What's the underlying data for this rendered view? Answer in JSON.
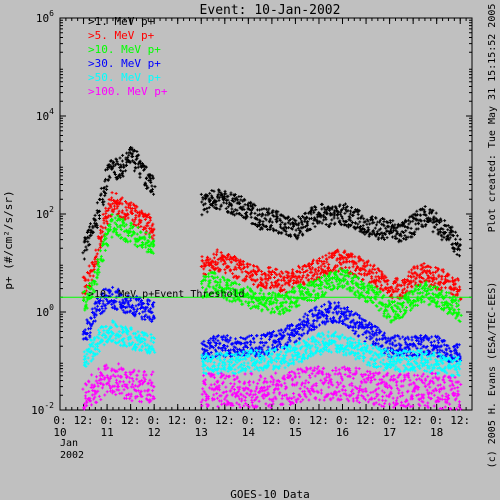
{
  "chart_data": {
    "type": "scatter",
    "title": "Event: 10-Jan-2002",
    "ylabel": "p+ (#/cm²/s/sr)",
    "xlabel": "GOES-10 Data",
    "y_scale": "log",
    "ylim": [
      0.01,
      1000000
    ],
    "y_ticks": [
      {
        "value": 0.01,
        "base": "10",
        "exp": "-2"
      },
      {
        "value": 1,
        "base": "10",
        "exp": "0"
      },
      {
        "value": 100,
        "base": "10",
        "exp": "2"
      },
      {
        "value": 10000,
        "base": "10",
        "exp": "4"
      },
      {
        "value": 1000000,
        "base": "10",
        "exp": "6"
      }
    ],
    "xlim": [
      "2002-01-10 00:00",
      "2002-01-18 18:00"
    ],
    "x_ticks": [
      {
        "t": "2002-01-10 00:00",
        "label": "0:"
      },
      {
        "t": "2002-01-10 12:00",
        "label": "12:"
      },
      {
        "t": "2002-01-11 00:00",
        "label": "0:"
      },
      {
        "t": "2002-01-11 12:00",
        "label": "12:"
      },
      {
        "t": "2002-01-12 00:00",
        "label": "0:"
      },
      {
        "t": "2002-01-12 12:00",
        "label": "12:"
      },
      {
        "t": "2002-01-13 00:00",
        "label": "0:"
      },
      {
        "t": "2002-01-13 12:00",
        "label": "12:"
      },
      {
        "t": "2002-01-14 00:00",
        "label": "0:"
      },
      {
        "t": "2002-01-14 12:00",
        "label": "12:"
      },
      {
        "t": "2002-01-15 00:00",
        "label": "0:"
      },
      {
        "t": "2002-01-15 12:00",
        "label": "12:"
      },
      {
        "t": "2002-01-16 00:00",
        "label": "0:"
      },
      {
        "t": "2002-01-16 12:00",
        "label": "12:"
      },
      {
        "t": "2002-01-17 00:00",
        "label": "0:"
      },
      {
        "t": "2002-01-17 12:00",
        "label": "12:"
      },
      {
        "t": "2002-01-18 00:00",
        "label": "0:"
      },
      {
        "t": "2002-01-18 12:00",
        "label": "12:"
      }
    ],
    "day_labels": [
      {
        "t": "2002-01-10 00:00",
        "label": "10"
      },
      {
        "t": "2002-01-11 00:00",
        "label": "11"
      },
      {
        "t": "2002-01-12 00:00",
        "label": "12"
      },
      {
        "t": "2002-01-13 00:00",
        "label": "13"
      },
      {
        "t": "2002-01-14 00:00",
        "label": "14"
      },
      {
        "t": "2002-01-15 00:00",
        "label": "15"
      },
      {
        "t": "2002-01-16 00:00",
        "label": "16"
      },
      {
        "t": "2002-01-17 00:00",
        "label": "17"
      },
      {
        "t": "2002-01-18 00:00",
        "label": "18"
      }
    ],
    "month_label": "Jan",
    "year_label": "2002",
    "threshold": {
      "value": 2.0,
      "label": ">10. MeV p+Event Threshold",
      "color": "#00ff00"
    },
    "right_annotation_top": "Plot created: Tue May 31 15:15:52 2005",
    "right_annotation_bottom": "(c) 2005 H. Evans (ESA/TEC-EES)",
    "data_gap": [
      "2002-01-12 00:00",
      "2002-01-12 23:00"
    ],
    "series": [
      {
        "name": ">1. MeV p+",
        "color": "#000000",
        "points": [
          [
            "2002-01-10 12:00",
            20
          ],
          [
            "2002-01-10 15:00",
            35
          ],
          [
            "2002-01-10 18:00",
            60
          ],
          [
            "2002-01-10 21:00",
            200
          ],
          [
            "2002-01-11 00:00",
            600
          ],
          [
            "2002-01-11 03:00",
            900
          ],
          [
            "2002-01-11 06:00",
            800
          ],
          [
            "2002-01-11 09:00",
            1000
          ],
          [
            "2002-01-11 12:00",
            1500
          ],
          [
            "2002-01-11 15:00",
            1200
          ],
          [
            "2002-01-11 18:00",
            700
          ],
          [
            "2002-01-11 21:00",
            500
          ],
          [
            "2002-01-12 00:00",
            400
          ],
          [
            "2002-01-13 00:00",
            150
          ],
          [
            "2002-01-13 06:00",
            200
          ],
          [
            "2002-01-13 12:00",
            180
          ],
          [
            "2002-01-13 18:00",
            150
          ],
          [
            "2002-01-14 00:00",
            120
          ],
          [
            "2002-01-14 06:00",
            80
          ],
          [
            "2002-01-14 12:00",
            80
          ],
          [
            "2002-01-14 18:00",
            60
          ],
          [
            "2002-01-15 00:00",
            50
          ],
          [
            "2002-01-15 06:00",
            70
          ],
          [
            "2002-01-15 12:00",
            100
          ],
          [
            "2002-01-15 18:00",
            90
          ],
          [
            "2002-01-16 00:00",
            100
          ],
          [
            "2002-01-16 06:00",
            80
          ],
          [
            "2002-01-16 12:00",
            60
          ],
          [
            "2002-01-16 18:00",
            50
          ],
          [
            "2002-01-17 00:00",
            50
          ],
          [
            "2002-01-17 06:00",
            40
          ],
          [
            "2002-01-17 12:00",
            60
          ],
          [
            "2002-01-17 18:00",
            100
          ],
          [
            "2002-01-18 00:00",
            60
          ],
          [
            "2002-01-18 06:00",
            40
          ],
          [
            "2002-01-18 12:00",
            20
          ]
        ]
      },
      {
        "name": ">5. MeV p+",
        "color": "#ff0000",
        "points": [
          [
            "2002-01-10 12:00",
            3
          ],
          [
            "2002-01-10 15:00",
            5
          ],
          [
            "2002-01-10 18:00",
            10
          ],
          [
            "2002-01-10 21:00",
            40
          ],
          [
            "2002-01-11 00:00",
            100
          ],
          [
            "2002-01-11 03:00",
            180
          ],
          [
            "2002-01-11 06:00",
            150
          ],
          [
            "2002-01-11 09:00",
            120
          ],
          [
            "2002-01-11 12:00",
            110
          ],
          [
            "2002-01-11 15:00",
            90
          ],
          [
            "2002-01-11 18:00",
            70
          ],
          [
            "2002-01-11 21:00",
            60
          ],
          [
            "2002-01-12 00:00",
            50
          ],
          [
            "2002-01-13 00:00",
            8
          ],
          [
            "2002-01-13 06:00",
            12
          ],
          [
            "2002-01-13 12:00",
            10
          ],
          [
            "2002-01-13 18:00",
            8
          ],
          [
            "2002-01-14 00:00",
            6
          ],
          [
            "2002-01-14 06:00",
            5
          ],
          [
            "2002-01-14 12:00",
            5
          ],
          [
            "2002-01-14 18:00",
            4
          ],
          [
            "2002-01-15 00:00",
            5
          ],
          [
            "2002-01-15 06:00",
            6
          ],
          [
            "2002-01-15 12:00",
            8
          ],
          [
            "2002-01-15 18:00",
            10
          ],
          [
            "2002-01-16 00:00",
            12
          ],
          [
            "2002-01-16 06:00",
            9
          ],
          [
            "2002-01-16 12:00",
            7
          ],
          [
            "2002-01-16 18:00",
            5
          ],
          [
            "2002-01-17 00:00",
            3
          ],
          [
            "2002-01-17 06:00",
            3
          ],
          [
            "2002-01-17 12:00",
            5
          ],
          [
            "2002-01-17 18:00",
            6
          ],
          [
            "2002-01-18 00:00",
            5
          ],
          [
            "2002-01-18 06:00",
            4
          ],
          [
            "2002-01-18 12:00",
            3
          ]
        ]
      },
      {
        "name": ">10. MeV p+",
        "color": "#00ff00",
        "points": [
          [
            "2002-01-10 12:00",
            1.5
          ],
          [
            "2002-01-10 15:00",
            2.5
          ],
          [
            "2002-01-10 18:00",
            5
          ],
          [
            "2002-01-10 21:00",
            15
          ],
          [
            "2002-01-11 00:00",
            35
          ],
          [
            "2002-01-11 03:00",
            60
          ],
          [
            "2002-01-11 06:00",
            55
          ],
          [
            "2002-01-11 09:00",
            45
          ],
          [
            "2002-01-11 12:00",
            40
          ],
          [
            "2002-01-11 15:00",
            35
          ],
          [
            "2002-01-11 18:00",
            30
          ],
          [
            "2002-01-11 21:00",
            25
          ],
          [
            "2002-01-12 00:00",
            20
          ],
          [
            "2002-01-13 00:00",
            3
          ],
          [
            "2002-01-13 06:00",
            4
          ],
          [
            "2002-01-13 12:00",
            3
          ],
          [
            "2002-01-13 18:00",
            2.5
          ],
          [
            "2002-01-14 00:00",
            2
          ],
          [
            "2002-01-14 06:00",
            1.8
          ],
          [
            "2002-01-14 12:00",
            1.5
          ],
          [
            "2002-01-14 18:00",
            1.5
          ],
          [
            "2002-01-15 00:00",
            2
          ],
          [
            "2002-01-15 06:00",
            2.5
          ],
          [
            "2002-01-15 12:00",
            3
          ],
          [
            "2002-01-15 18:00",
            4
          ],
          [
            "2002-01-16 00:00",
            5
          ],
          [
            "2002-01-16 06:00",
            3.5
          ],
          [
            "2002-01-16 12:00",
            2.5
          ],
          [
            "2002-01-16 18:00",
            2
          ],
          [
            "2002-01-17 00:00",
            1
          ],
          [
            "2002-01-17 06:00",
            1.2
          ],
          [
            "2002-01-17 12:00",
            2
          ],
          [
            "2002-01-17 18:00",
            2.5
          ],
          [
            "2002-01-18 00:00",
            2
          ],
          [
            "2002-01-18 06:00",
            1.5
          ],
          [
            "2002-01-18 12:00",
            1
          ]
        ]
      },
      {
        "name": ">30. MeV p+",
        "color": "#0000ff",
        "points": [
          [
            "2002-01-10 12:00",
            0.3
          ],
          [
            "2002-01-10 15:00",
            0.5
          ],
          [
            "2002-01-10 18:00",
            1
          ],
          [
            "2002-01-10 21:00",
            1.5
          ],
          [
            "2002-01-11 00:00",
            2
          ],
          [
            "2002-01-11 03:00",
            2
          ],
          [
            "2002-01-11 06:00",
            1.8
          ],
          [
            "2002-01-11 09:00",
            1.5
          ],
          [
            "2002-01-11 12:00",
            1.5
          ],
          [
            "2002-01-11 15:00",
            1.3
          ],
          [
            "2002-01-11 18:00",
            1.2
          ],
          [
            "2002-01-11 21:00",
            1.1
          ],
          [
            "2002-01-12 00:00",
            1
          ],
          [
            "2002-01-13 00:00",
            0.15
          ],
          [
            "2002-01-13 06:00",
            0.2
          ],
          [
            "2002-01-13 12:00",
            0.2
          ],
          [
            "2002-01-13 18:00",
            0.2
          ],
          [
            "2002-01-14 00:00",
            0.2
          ],
          [
            "2002-01-14 06:00",
            0.2
          ],
          [
            "2002-01-14 12:00",
            0.25
          ],
          [
            "2002-01-14 18:00",
            0.3
          ],
          [
            "2002-01-15 00:00",
            0.4
          ],
          [
            "2002-01-15 06:00",
            0.6
          ],
          [
            "2002-01-15 12:00",
            0.8
          ],
          [
            "2002-01-15 18:00",
            1
          ],
          [
            "2002-01-16 00:00",
            0.9
          ],
          [
            "2002-01-16 06:00",
            0.6
          ],
          [
            "2002-01-16 12:00",
            0.4
          ],
          [
            "2002-01-16 18:00",
            0.3
          ],
          [
            "2002-01-17 00:00",
            0.2
          ],
          [
            "2002-01-17 06:00",
            0.2
          ],
          [
            "2002-01-17 12:00",
            0.2
          ],
          [
            "2002-01-17 18:00",
            0.2
          ],
          [
            "2002-01-18 00:00",
            0.2
          ],
          [
            "2002-01-18 06:00",
            0.15
          ],
          [
            "2002-01-18 12:00",
            0.15
          ]
        ]
      },
      {
        "name": ">50. MeV p+",
        "color": "#00ffff",
        "points": [
          [
            "2002-01-10 12:00",
            0.1
          ],
          [
            "2002-01-10 15:00",
            0.15
          ],
          [
            "2002-01-10 18:00",
            0.2
          ],
          [
            "2002-01-10 21:00",
            0.3
          ],
          [
            "2002-01-11 00:00",
            0.4
          ],
          [
            "2002-01-11 03:00",
            0.4
          ],
          [
            "2002-01-11 06:00",
            0.35
          ],
          [
            "2002-01-11 09:00",
            0.3
          ],
          [
            "2002-01-11 12:00",
            0.3
          ],
          [
            "2002-01-11 15:00",
            0.25
          ],
          [
            "2002-01-11 18:00",
            0.25
          ],
          [
            "2002-01-11 21:00",
            0.22
          ],
          [
            "2002-01-12 00:00",
            0.2
          ],
          [
            "2002-01-13 00:00",
            0.08
          ],
          [
            "2002-01-13 06:00",
            0.09
          ],
          [
            "2002-01-13 12:00",
            0.09
          ],
          [
            "2002-01-13 18:00",
            0.09
          ],
          [
            "2002-01-14 00:00",
            0.1
          ],
          [
            "2002-01-14 06:00",
            0.1
          ],
          [
            "2002-01-14 12:00",
            0.11
          ],
          [
            "2002-01-14 18:00",
            0.12
          ],
          [
            "2002-01-15 00:00",
            0.14
          ],
          [
            "2002-01-15 06:00",
            0.18
          ],
          [
            "2002-01-15 12:00",
            0.22
          ],
          [
            "2002-01-15 18:00",
            0.25
          ],
          [
            "2002-01-16 00:00",
            0.22
          ],
          [
            "2002-01-16 06:00",
            0.18
          ],
          [
            "2002-01-16 12:00",
            0.14
          ],
          [
            "2002-01-16 18:00",
            0.12
          ],
          [
            "2002-01-17 00:00",
            0.1
          ],
          [
            "2002-01-17 06:00",
            0.1
          ],
          [
            "2002-01-17 12:00",
            0.1
          ],
          [
            "2002-01-17 18:00",
            0.1
          ],
          [
            "2002-01-18 00:00",
            0.09
          ],
          [
            "2002-01-18 06:00",
            0.08
          ],
          [
            "2002-01-18 12:00",
            0.08
          ]
        ]
      },
      {
        "name": ">100. MeV p+",
        "color": "#ff00ff",
        "points": [
          [
            "2002-01-10 12:00",
            0.02
          ],
          [
            "2002-01-10 18:00",
            0.03
          ],
          [
            "2002-01-11 00:00",
            0.04
          ],
          [
            "2002-01-11 06:00",
            0.04
          ],
          [
            "2002-01-11 12:00",
            0.035
          ],
          [
            "2002-01-11 18:00",
            0.03
          ],
          [
            "2002-01-12 00:00",
            0.03
          ],
          [
            "2002-01-13 00:00",
            0.025
          ],
          [
            "2002-01-13 12:00",
            0.025
          ],
          [
            "2002-01-14 00:00",
            0.025
          ],
          [
            "2002-01-14 12:00",
            0.025
          ],
          [
            "2002-01-15 00:00",
            0.03
          ],
          [
            "2002-01-15 12:00",
            0.035
          ],
          [
            "2002-01-16 00:00",
            0.035
          ],
          [
            "2002-01-16 12:00",
            0.03
          ],
          [
            "2002-01-17 00:00",
            0.025
          ],
          [
            "2002-01-17 12:00",
            0.025
          ],
          [
            "2002-01-18 00:00",
            0.025
          ],
          [
            "2002-01-18 12:00",
            0.02
          ]
        ]
      }
    ]
  }
}
